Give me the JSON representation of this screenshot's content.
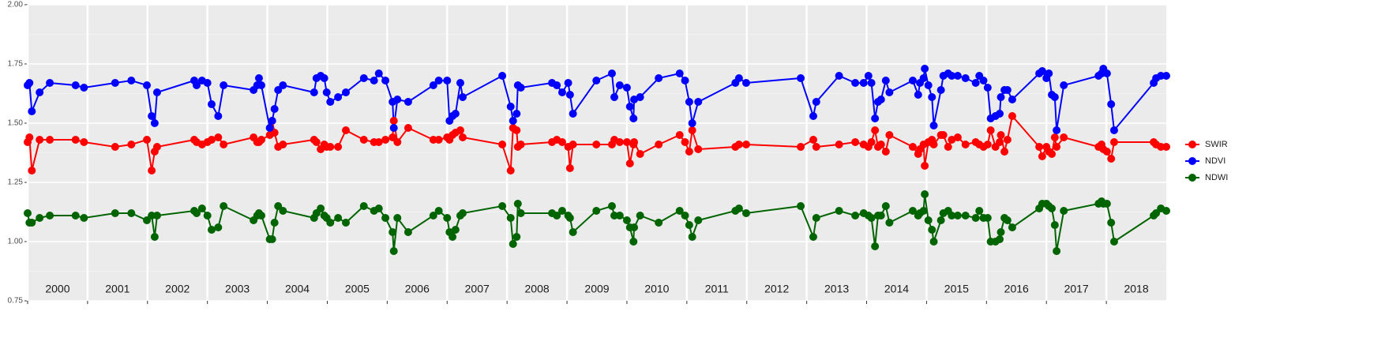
{
  "chart_data": {
    "type": "line",
    "xlim": [
      2000,
      2019
    ],
    "xticks": [
      2000,
      2001,
      2002,
      2003,
      2004,
      2005,
      2006,
      2007,
      2008,
      2009,
      2010,
      2011,
      2012,
      2013,
      2014,
      2015,
      2016,
      2017,
      2018
    ],
    "ylim": [
      0.75,
      2.0
    ],
    "yticks": [
      {
        "value": 0.75,
        "label": "0.75"
      },
      {
        "value": 1.0,
        "label": "1.00"
      },
      {
        "value": 1.25,
        "label": "1.25"
      },
      {
        "value": 1.5,
        "label": "1.50"
      },
      {
        "value": 1.75,
        "label": "1.75"
      },
      {
        "value": 2.0,
        "label": "2.00"
      }
    ],
    "grid": true,
    "legend": "right",
    "x": [
      2000.0,
      2000.03,
      2000.07,
      2000.2,
      2000.37,
      2000.8,
      2000.94,
      2001.46,
      2001.73,
      2001.99,
      2002.07,
      2002.12,
      2002.16,
      2002.78,
      2002.82,
      2002.91,
      2003.0,
      2003.07,
      2003.18,
      2003.27,
      2003.77,
      2003.83,
      2003.86,
      2003.9,
      2004.04,
      2004.08,
      2004.12,
      2004.18,
      2004.26,
      2004.78,
      2004.82,
      2004.89,
      2004.95,
      2004.99,
      2005.05,
      2005.18,
      2005.31,
      2005.61,
      2005.78,
      2005.86,
      2005.97,
      2006.09,
      2006.11,
      2006.17,
      2006.35,
      2006.77,
      2006.86,
      2007.0,
      2007.04,
      2007.09,
      2007.14,
      2007.22,
      2007.26,
      2007.92,
      2008.06,
      2008.1,
      2008.16,
      2008.18,
      2008.23,
      2008.75,
      2008.83,
      2008.92,
      2009.02,
      2009.05,
      2009.1,
      2009.49,
      2009.75,
      2009.79,
      2009.88,
      2010.0,
      2010.05,
      2010.11,
      2010.12,
      2010.22,
      2010.53,
      2010.88,
      2010.97,
      2011.04,
      2011.09,
      2011.19,
      2011.81,
      2011.87,
      2011.99,
      2012.9,
      2013.11,
      2013.16,
      2013.54,
      2013.81,
      2013.95,
      2014.03,
      2014.08,
      2014.14,
      2014.19,
      2014.24,
      2014.32,
      2014.38,
      2014.77,
      2014.86,
      2014.89,
      2014.95,
      2014.97,
      2015.03,
      2015.09,
      2015.12,
      2015.24,
      2015.28,
      2015.36,
      2015.42,
      2015.52,
      2015.65,
      2015.82,
      2015.88,
      2015.95,
      2016.02,
      2016.07,
      2016.15,
      2016.22,
      2016.24,
      2016.3,
      2016.35,
      2016.43,
      2016.88,
      2016.93,
      2017.0,
      2017.04,
      2017.09,
      2017.14,
      2017.17,
      2017.29,
      2017.87,
      2017.92,
      2017.95,
      2018.01,
      2018.08,
      2018.13,
      2018.79,
      2018.83,
      2018.91,
      2019.0
    ],
    "series": [
      {
        "name": "SWIR",
        "color": "#ff0000",
        "values": [
          1.42,
          1.44,
          1.3,
          1.43,
          1.43,
          1.43,
          1.42,
          1.4,
          1.41,
          1.43,
          1.3,
          1.38,
          1.4,
          1.43,
          1.42,
          1.41,
          1.42,
          1.43,
          1.44,
          1.41,
          1.44,
          1.42,
          1.42,
          1.43,
          1.45,
          1.51,
          1.46,
          1.4,
          1.41,
          1.43,
          1.42,
          1.39,
          1.41,
          1.4,
          1.4,
          1.4,
          1.47,
          1.43,
          1.42,
          1.42,
          1.43,
          1.44,
          1.51,
          1.42,
          1.48,
          1.43,
          1.43,
          1.44,
          1.43,
          1.45,
          1.46,
          1.47,
          1.44,
          1.41,
          1.3,
          1.48,
          1.47,
          1.4,
          1.41,
          1.42,
          1.43,
          1.42,
          1.4,
          1.31,
          1.41,
          1.41,
          1.41,
          1.43,
          1.42,
          1.42,
          1.33,
          1.41,
          1.42,
          1.37,
          1.41,
          1.45,
          1.42,
          1.38,
          1.47,
          1.39,
          1.4,
          1.41,
          1.41,
          1.4,
          1.43,
          1.4,
          1.41,
          1.42,
          1.41,
          1.4,
          1.42,
          1.47,
          1.4,
          1.41,
          1.38,
          1.45,
          1.4,
          1.37,
          1.39,
          1.41,
          1.32,
          1.42,
          1.43,
          1.41,
          1.45,
          1.45,
          1.4,
          1.43,
          1.44,
          1.41,
          1.42,
          1.41,
          1.4,
          1.41,
          1.47,
          1.4,
          1.42,
          1.45,
          1.38,
          1.43,
          1.53,
          1.4,
          1.36,
          1.4,
          1.38,
          1.37,
          1.44,
          1.4,
          1.44,
          1.4,
          1.41,
          1.39,
          1.38,
          1.35,
          1.42,
          1.42,
          1.41,
          1.4,
          1.4
        ]
      },
      {
        "name": "NDVI",
        "color": "#0000ff",
        "values": [
          1.66,
          1.67,
          1.55,
          1.63,
          1.67,
          1.66,
          1.65,
          1.67,
          1.68,
          1.66,
          1.53,
          1.5,
          1.63,
          1.68,
          1.66,
          1.68,
          1.67,
          1.58,
          1.53,
          1.66,
          1.64,
          1.66,
          1.69,
          1.66,
          1.48,
          1.51,
          1.56,
          1.64,
          1.66,
          1.63,
          1.69,
          1.7,
          1.69,
          1.63,
          1.59,
          1.61,
          1.63,
          1.69,
          1.68,
          1.71,
          1.68,
          1.59,
          1.48,
          1.6,
          1.59,
          1.66,
          1.68,
          1.68,
          1.51,
          1.53,
          1.54,
          1.67,
          1.61,
          1.7,
          1.57,
          1.51,
          1.54,
          1.66,
          1.65,
          1.67,
          1.66,
          1.63,
          1.67,
          1.62,
          1.54,
          1.68,
          1.71,
          1.61,
          1.66,
          1.65,
          1.57,
          1.52,
          1.6,
          1.61,
          1.69,
          1.71,
          1.68,
          1.59,
          1.5,
          1.59,
          1.67,
          1.69,
          1.67,
          1.69,
          1.53,
          1.59,
          1.7,
          1.67,
          1.67,
          1.7,
          1.67,
          1.52,
          1.59,
          1.6,
          1.68,
          1.63,
          1.68,
          1.62,
          1.67,
          1.69,
          1.73,
          1.66,
          1.61,
          1.49,
          1.64,
          1.7,
          1.71,
          1.7,
          1.7,
          1.69,
          1.67,
          1.7,
          1.68,
          1.65,
          1.52,
          1.53,
          1.54,
          1.61,
          1.64,
          1.64,
          1.6,
          1.71,
          1.72,
          1.69,
          1.71,
          1.62,
          1.61,
          1.47,
          1.66,
          1.7,
          1.71,
          1.73,
          1.71,
          1.58,
          1.47,
          1.67,
          1.69,
          1.7,
          1.7
        ]
      },
      {
        "name": "NDWI",
        "color": "#006400",
        "values": [
          1.12,
          1.08,
          1.08,
          1.1,
          1.11,
          1.11,
          1.1,
          1.12,
          1.12,
          1.09,
          1.11,
          1.02,
          1.11,
          1.13,
          1.12,
          1.14,
          1.11,
          1.05,
          1.06,
          1.15,
          1.09,
          1.11,
          1.12,
          1.11,
          1.01,
          1.01,
          1.08,
          1.15,
          1.13,
          1.1,
          1.12,
          1.14,
          1.11,
          1.1,
          1.08,
          1.1,
          1.08,
          1.15,
          1.13,
          1.14,
          1.1,
          1.04,
          0.96,
          1.1,
          1.04,
          1.11,
          1.13,
          1.1,
          1.04,
          1.02,
          1.05,
          1.11,
          1.12,
          1.15,
          1.1,
          0.99,
          1.02,
          1.16,
          1.12,
          1.12,
          1.11,
          1.13,
          1.11,
          1.1,
          1.04,
          1.13,
          1.15,
          1.11,
          1.11,
          1.09,
          1.06,
          1.0,
          1.06,
          1.11,
          1.08,
          1.13,
          1.11,
          1.07,
          1.02,
          1.09,
          1.13,
          1.14,
          1.12,
          1.15,
          1.02,
          1.1,
          1.13,
          1.11,
          1.12,
          1.11,
          1.1,
          0.98,
          1.11,
          1.11,
          1.15,
          1.08,
          1.13,
          1.11,
          1.12,
          1.13,
          1.2,
          1.09,
          1.05,
          1.0,
          1.09,
          1.12,
          1.13,
          1.11,
          1.11,
          1.11,
          1.1,
          1.13,
          1.1,
          1.1,
          1.0,
          1.0,
          1.01,
          1.04,
          1.1,
          1.09,
          1.06,
          1.14,
          1.16,
          1.16,
          1.15,
          1.14,
          1.07,
          0.96,
          1.13,
          1.16,
          1.17,
          1.16,
          1.16,
          1.08,
          1.0,
          1.11,
          1.12,
          1.14,
          1.13
        ]
      }
    ]
  }
}
